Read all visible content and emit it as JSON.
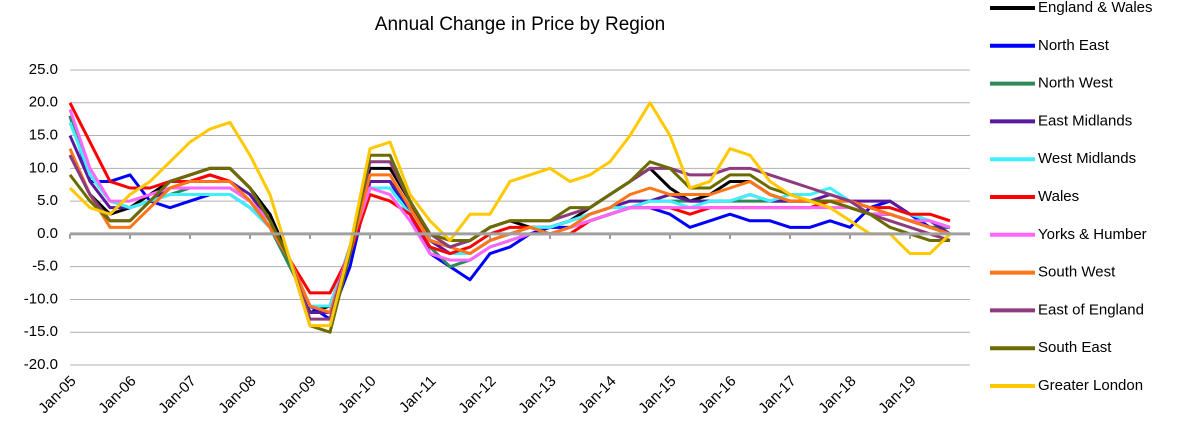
{
  "chart_data": {
    "type": "line",
    "title": "Annual Change in Price by Region",
    "categories": [
      "Jan-05",
      null,
      null,
      "Jan-06",
      null,
      null,
      "Jan-07",
      null,
      null,
      "Jan-08",
      null,
      null,
      "Jan-09",
      null,
      null,
      "Jan-10",
      null,
      null,
      "Jan-11",
      null,
      null,
      "Jan-12",
      null,
      null,
      "Jan-13",
      null,
      null,
      "Jan-14",
      null,
      null,
      "Jan-15",
      null,
      null,
      "Jan-16",
      null,
      null,
      "Jan-17",
      null,
      null,
      "Jan-18",
      null,
      null,
      "Jan-19",
      null,
      null
    ],
    "ylim": [
      -20,
      25
    ],
    "yticks": [
      {
        "value": -20,
        "label": "-20.0"
      },
      {
        "value": -15,
        "label": "-15.0"
      },
      {
        "value": -10,
        "label": "-10.0"
      },
      {
        "value": -5,
        "label": "-5.0"
      },
      {
        "value": 0,
        "label": "0.0"
      },
      {
        "value": 5,
        "label": "5.0"
      },
      {
        "value": 10,
        "label": "10.0"
      },
      {
        "value": 15,
        "label": "15.0"
      },
      {
        "value": 20,
        "label": "20.0"
      },
      {
        "value": 25,
        "label": "25.0"
      }
    ],
    "grid": true,
    "series": [
      {
        "name": "England & Wales",
        "color": "#000000",
        "values": [
          12,
          6,
          3,
          4,
          6,
          8,
          9,
          10,
          10,
          7,
          3,
          -4,
          -12,
          -11,
          -2,
          10,
          10,
          5,
          -1,
          -2,
          -1,
          1,
          2,
          1,
          1,
          2,
          4,
          6,
          8,
          10,
          7,
          5,
          6,
          8,
          8,
          6,
          5,
          5,
          5,
          4,
          3,
          3,
          2,
          1,
          0
        ]
      },
      {
        "name": "North East",
        "color": "#0000ff",
        "values": [
          18,
          8,
          8,
          9,
          5,
          4,
          5,
          6,
          6,
          4,
          1,
          -5,
          -11,
          -13,
          -5,
          8,
          8,
          3,
          -3,
          -5,
          -7,
          -3,
          -2,
          0,
          1,
          1,
          2,
          3,
          4,
          4,
          3,
          1,
          2,
          3,
          2,
          2,
          1,
          1,
          2,
          1,
          4,
          5,
          3,
          1,
          1
        ]
      },
      {
        "name": "North West",
        "color": "#2e8b57",
        "values": [
          18,
          9,
          5,
          4,
          5,
          6,
          7,
          7,
          7,
          5,
          1,
          -5,
          -11,
          -12,
          -3,
          7,
          7,
          3,
          -2,
          -5,
          -4,
          -2,
          -1,
          0,
          0,
          1,
          2,
          3,
          4,
          5,
          5,
          5,
          5,
          5,
          5,
          5,
          5,
          5,
          5,
          4,
          3,
          3,
          2,
          1,
          1
        ]
      },
      {
        "name": "East Midlands",
        "color": "#5b1a9e",
        "values": [
          15,
          8,
          4,
          4,
          5,
          7,
          8,
          9,
          8,
          6,
          2,
          -4,
          -12,
          -12,
          -3,
          8,
          8,
          4,
          -1,
          -3,
          -3,
          -1,
          0,
          1,
          1,
          2,
          3,
          4,
          5,
          5,
          6,
          5,
          5,
          5,
          6,
          5,
          5,
          5,
          6,
          5,
          5,
          5,
          3,
          2,
          0
        ]
      },
      {
        "name": "West Midlands",
        "color": "#40f0ff",
        "values": [
          17,
          9,
          5,
          4,
          5,
          6,
          6,
          6,
          6,
          4,
          1,
          -4,
          -11,
          -11,
          -2,
          7,
          7,
          3,
          -2,
          -3,
          -3,
          -1,
          0,
          1,
          1,
          2,
          3,
          4,
          4,
          5,
          5,
          4,
          5,
          5,
          6,
          5,
          6,
          6,
          7,
          5,
          4,
          4,
          3,
          2,
          1
        ]
      },
      {
        "name": "Wales",
        "color": "#ff0000",
        "values": [
          20,
          14,
          8,
          7,
          7,
          8,
          8,
          9,
          8,
          5,
          1,
          -4,
          -9,
          -9,
          -3,
          6,
          5,
          3,
          -2,
          -3,
          -2,
          0,
          1,
          1,
          0,
          0,
          2,
          3,
          4,
          4,
          4,
          3,
          4,
          4,
          4,
          4,
          4,
          4,
          5,
          5,
          4,
          4,
          3,
          3,
          2
        ]
      },
      {
        "name": "Yorks & Humber",
        "color": "#ff66ff",
        "values": [
          19,
          10,
          5,
          5,
          6,
          7,
          7,
          7,
          7,
          5,
          2,
          -4,
          -11,
          -12,
          -2,
          7,
          6,
          2,
          -3,
          -4,
          -4,
          -2,
          -1,
          0,
          0,
          1,
          2,
          3,
          4,
          4,
          4,
          4,
          4,
          4,
          4,
          4,
          4,
          4,
          4,
          4,
          3,
          3,
          2,
          2,
          1
        ]
      },
      {
        "name": "South West",
        "color": "#ff7518",
        "values": [
          13,
          6,
          1,
          1,
          4,
          7,
          8,
          8,
          8,
          5,
          1,
          -4,
          -11,
          -12,
          -3,
          9,
          9,
          4,
          -1,
          -2,
          -3,
          -1,
          0,
          1,
          0,
          1,
          3,
          4,
          6,
          7,
          6,
          6,
          6,
          7,
          8,
          6,
          5,
          5,
          5,
          5,
          4,
          3,
          2,
          1,
          0
        ]
      },
      {
        "name": "East of England",
        "color": "#8e3a7e",
        "values": [
          12,
          6,
          2,
          2,
          5,
          8,
          9,
          10,
          10,
          7,
          2,
          -4,
          -13,
          -13,
          -2,
          11,
          11,
          5,
          0,
          -2,
          -1,
          1,
          2,
          2,
          2,
          3,
          4,
          6,
          8,
          10,
          10,
          9,
          9,
          10,
          10,
          9,
          8,
          7,
          6,
          5,
          3,
          2,
          1,
          0,
          -1
        ]
      },
      {
        "name": "South East",
        "color": "#6b6b00",
        "values": [
          9,
          5,
          2,
          2,
          5,
          8,
          9,
          10,
          10,
          7,
          2,
          -4,
          -14,
          -15,
          -3,
          12,
          12,
          5,
          0,
          -1,
          -1,
          1,
          2,
          2,
          2,
          4,
          4,
          6,
          8,
          11,
          10,
          7,
          7,
          9,
          9,
          7,
          6,
          5,
          5,
          4,
          3,
          1,
          0,
          -1,
          -1
        ]
      },
      {
        "name": "Greater London",
        "color": "#ffc800",
        "values": [
          7,
          4,
          3,
          6,
          8,
          11,
          14,
          16,
          17,
          12,
          6,
          -4,
          -14,
          -14,
          -2,
          13,
          14,
          6,
          2,
          -1,
          3,
          3,
          8,
          9,
          10,
          8,
          9,
          11,
          15,
          20,
          15,
          7,
          8,
          13,
          12,
          8,
          6,
          5,
          4,
          2,
          0,
          0,
          -3,
          -3,
          0
        ]
      }
    ]
  }
}
